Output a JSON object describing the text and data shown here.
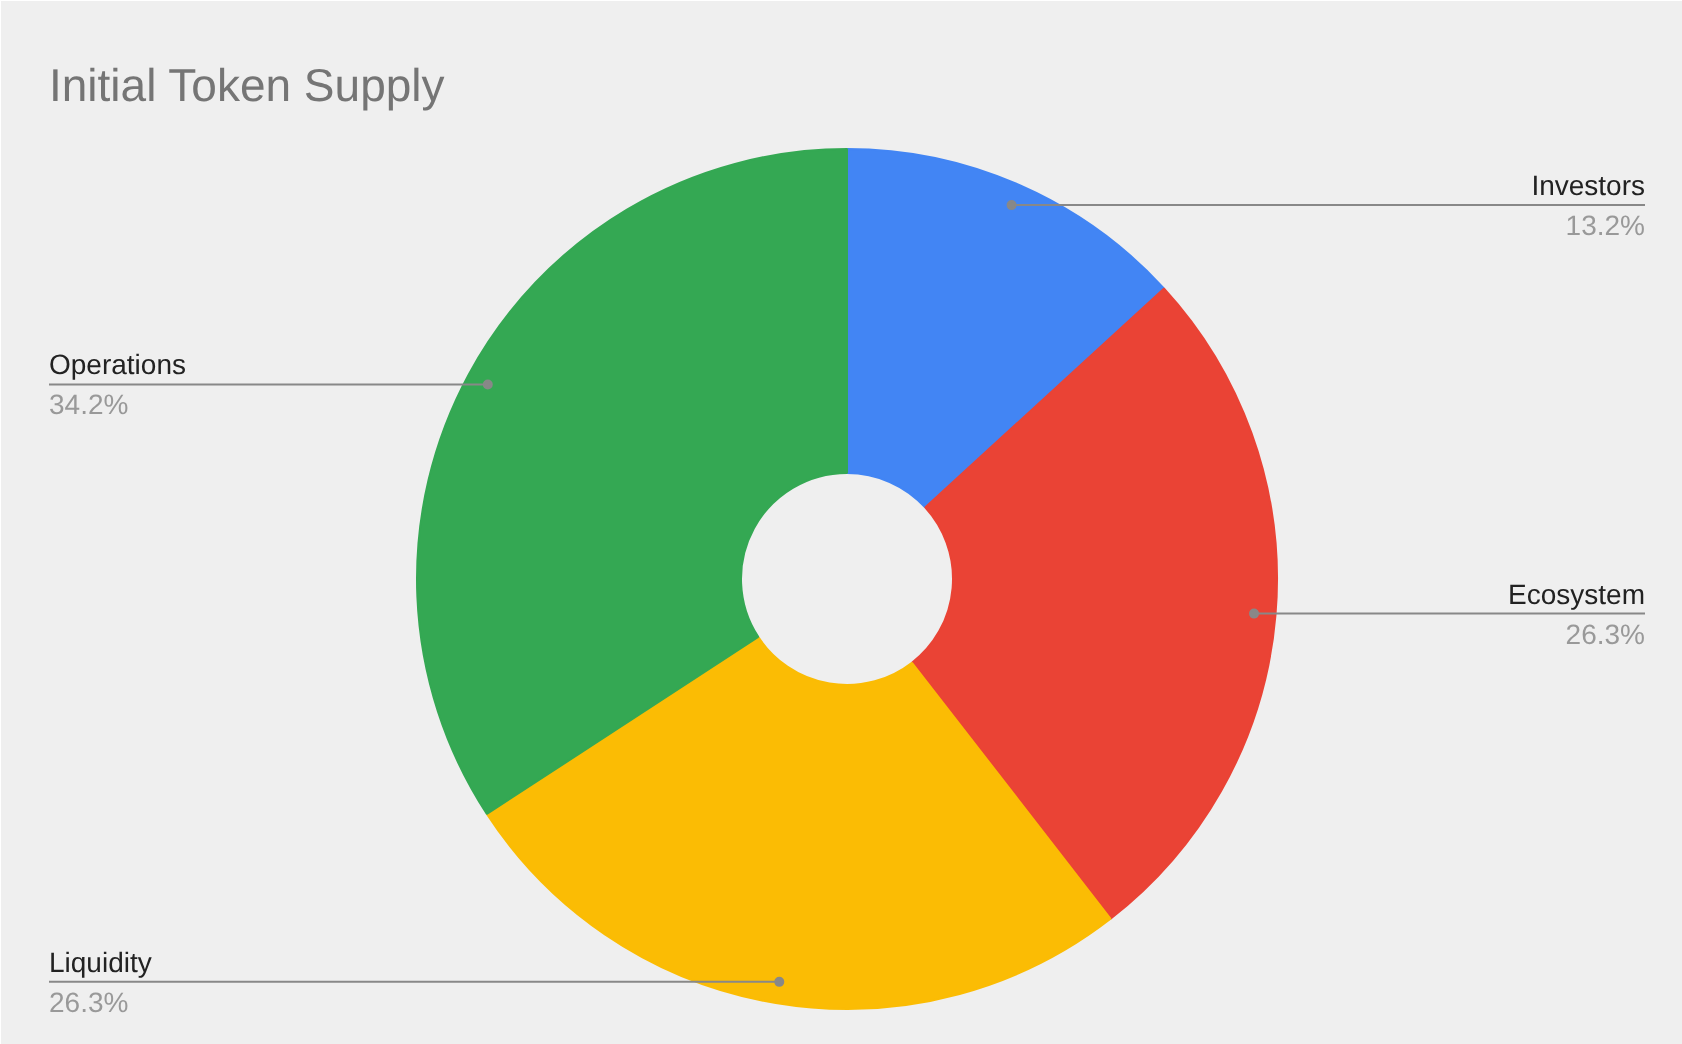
{
  "chart_data": {
    "type": "donut",
    "title": "Initial Token Supply",
    "categories": [
      "Investors",
      "Ecosystem",
      "Liquidity",
      "Operations"
    ],
    "values": [
      13.2,
      26.3,
      26.3,
      34.2
    ],
    "value_labels": [
      "13.2%",
      "26.3%",
      "26.3%",
      "34.2%"
    ],
    "colors": [
      "#4285f4",
      "#ea4335",
      "#fbbc04",
      "#34a853"
    ],
    "legend": false
  }
}
